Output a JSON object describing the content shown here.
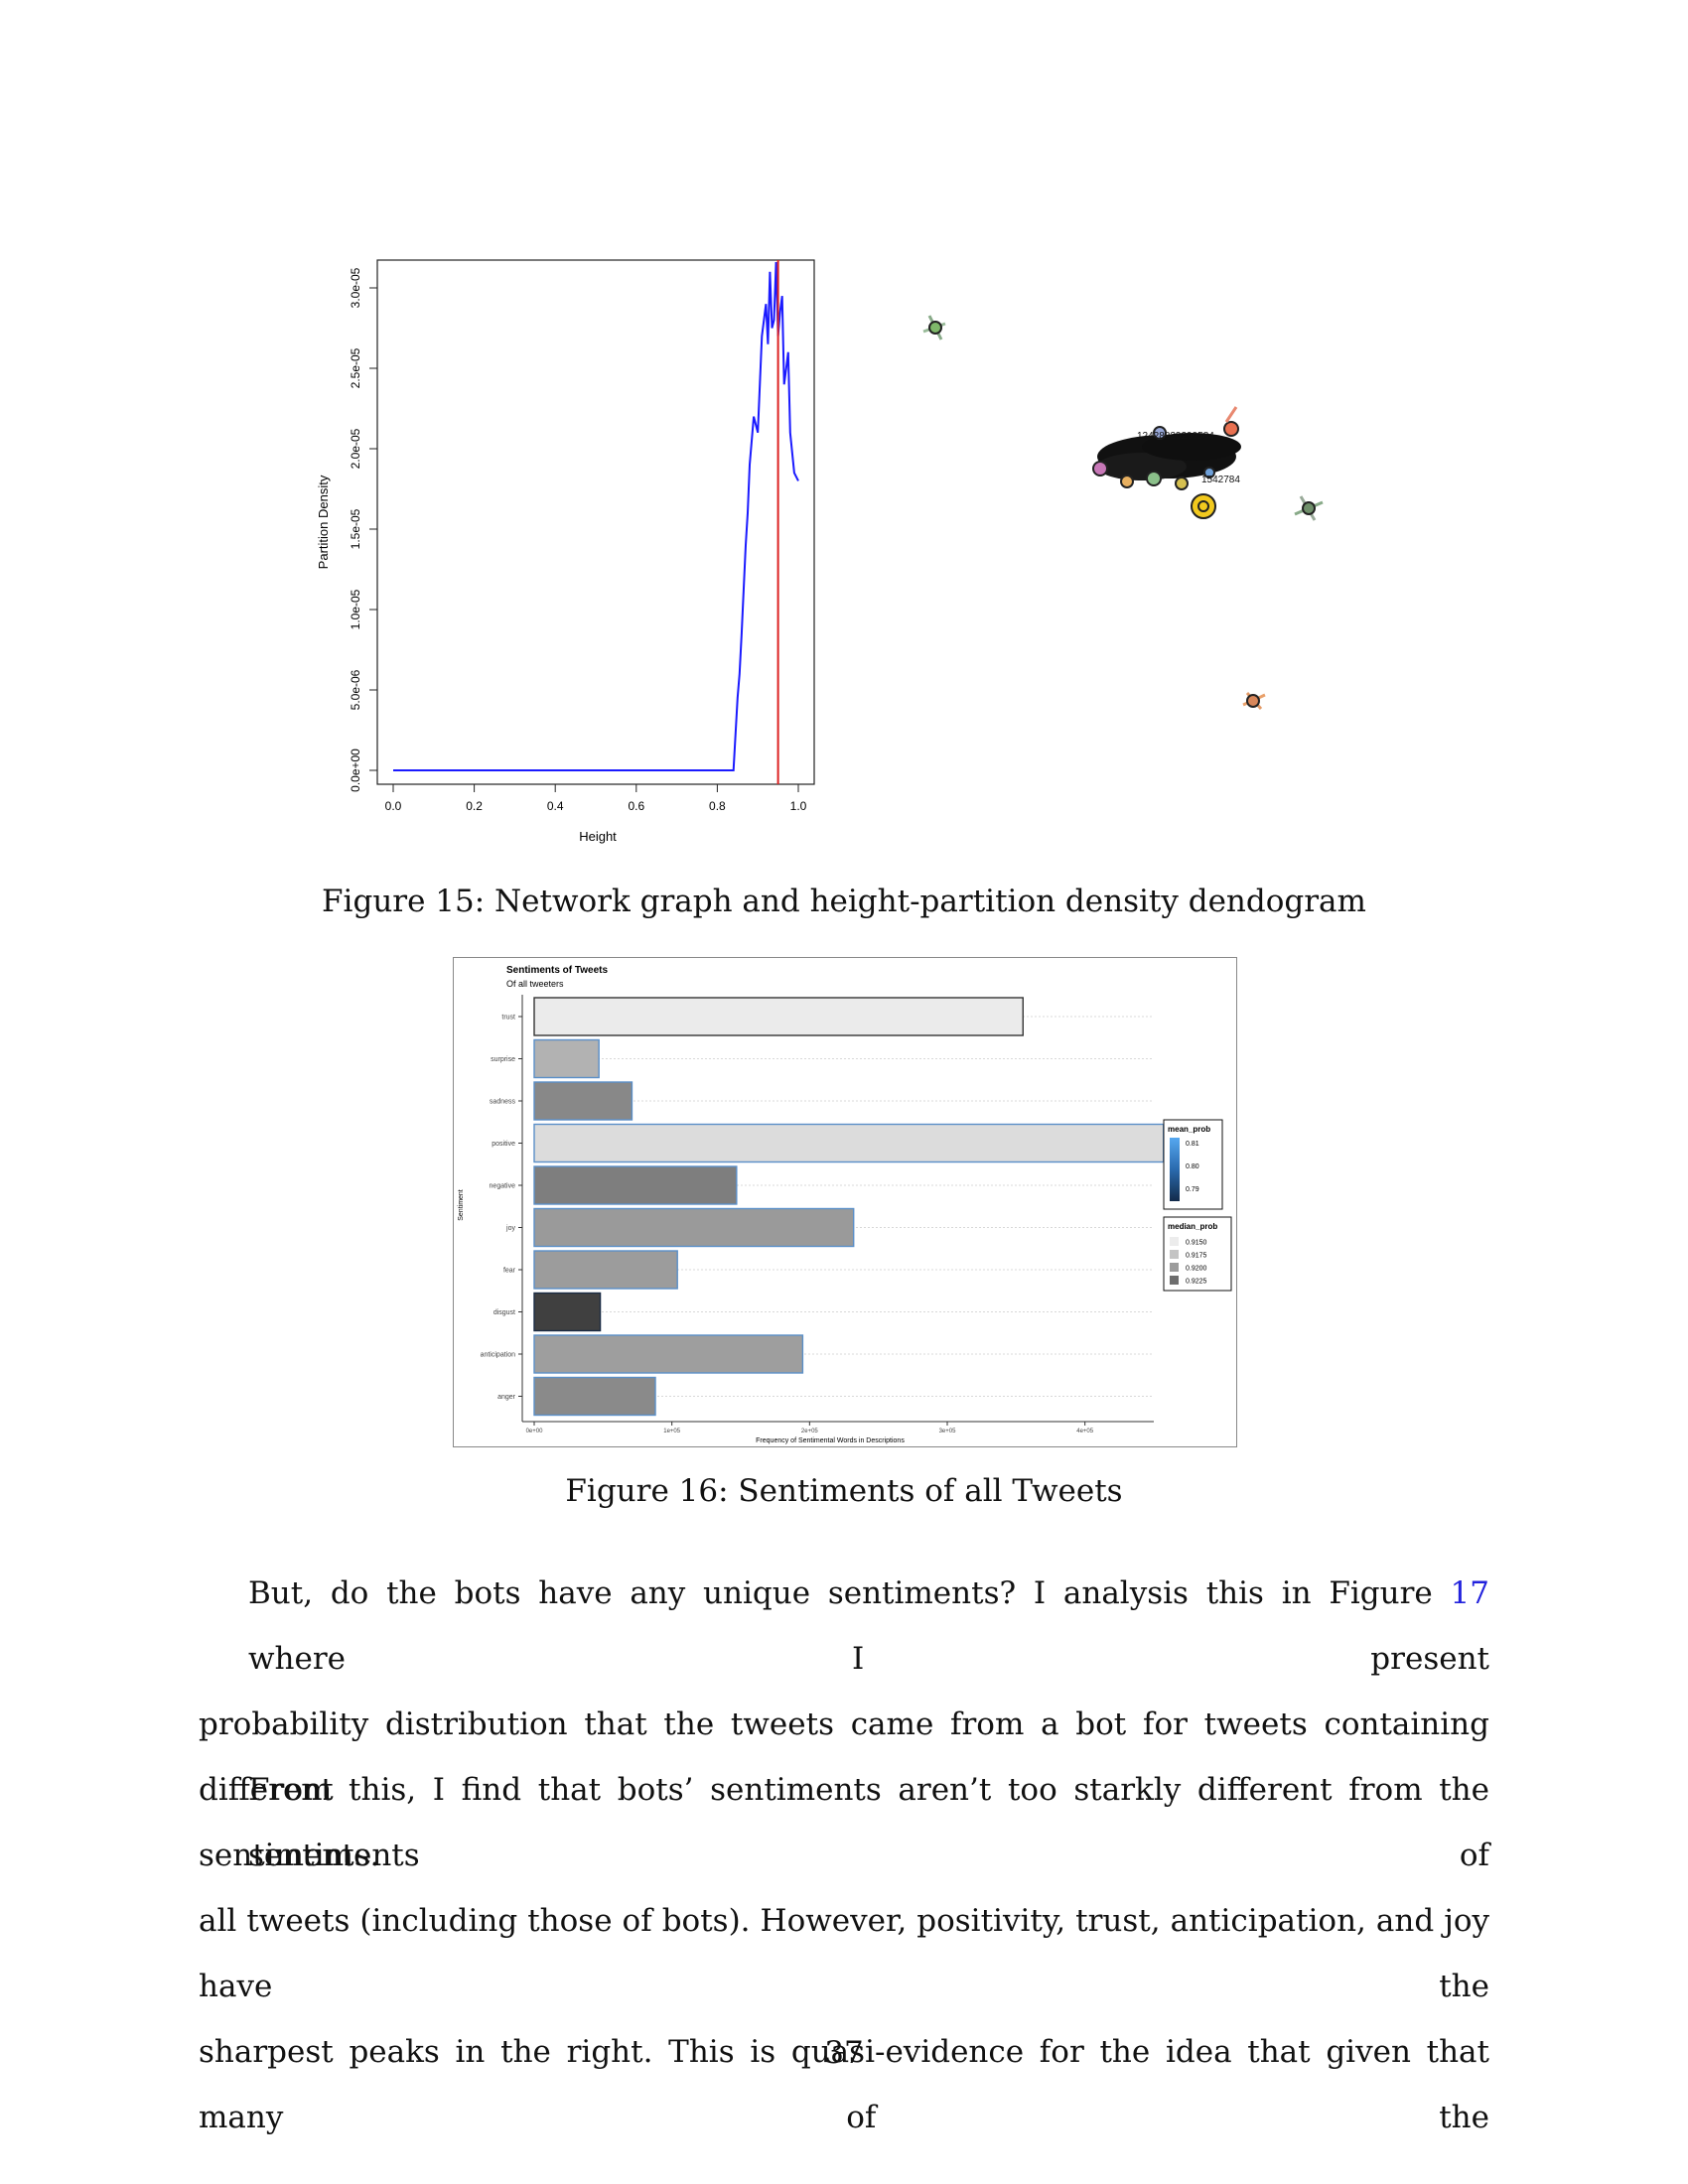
{
  "figure15": {
    "caption": "Figure 15: Network graph and height-partition density dendogram",
    "density_chart": {
      "type": "line",
      "xlabel": "Height",
      "ylabel": "Partition Density",
      "xlim": [
        0,
        1
      ],
      "ylim": [
        0,
        3e-05
      ],
      "x_ticks": [
        "0.0",
        "0.2",
        "0.4",
        "0.6",
        "0.8",
        "1.0"
      ],
      "y_ticks": [
        "0.0e+00",
        "5.0e-06",
        "1.0e-05",
        "1.5e-05",
        "2.0e-05",
        "2.5e-05",
        "3.0e-05"
      ],
      "series_color": "#1a1aff",
      "cut_line_x": 0.95,
      "cut_line_color": "#dd2222",
      "x": [
        0.0,
        0.84,
        0.85,
        0.855,
        0.86,
        0.87,
        0.875,
        0.88,
        0.89,
        0.9,
        0.91,
        0.92,
        0.925,
        0.93,
        0.935,
        0.94,
        0.945,
        0.95,
        0.955,
        0.96,
        0.965,
        0.97,
        0.975,
        0.98,
        0.99,
        1.0
      ],
      "y": [
        0.0,
        0.0,
        4.5e-06,
        6e-06,
        8.5e-06,
        1.4e-05,
        1.6e-05,
        1.9e-05,
        2.2e-05,
        2.1e-05,
        2.7e-05,
        2.9e-05,
        2.65e-05,
        3.1e-05,
        2.75e-05,
        2.8e-05,
        3.25e-05,
        2.7e-05,
        2.85e-05,
        2.95e-05,
        2.4e-05,
        2.5e-05,
        2.6e-05,
        2.1e-05,
        1.85e-05,
        1.8e-05
      ]
    },
    "network_graph": {
      "label_top": "12428829299584",
      "label_bottom": "1542784"
    }
  },
  "figure16": {
    "caption": "Figure 16: Sentiments of all Tweets",
    "chart_data": {
      "type": "bar",
      "orientation": "horizontal",
      "title": "Sentiments of Tweets",
      "subtitle": "Of all tweeters",
      "xlabel": "Frequency of Sentimental Words in Descriptions",
      "ylabel": "Sentiment",
      "xlim": [
        0,
        450000
      ],
      "x_ticks": [
        "0e+00",
        "1e+05",
        "2e+05",
        "3e+05",
        "4e+05"
      ],
      "categories": [
        "trust",
        "surprise",
        "sadness",
        "positive",
        "negative",
        "joy",
        "fear",
        "disgust",
        "anticipation",
        "anger"
      ],
      "values": [
        355000,
        47000,
        71000,
        457000,
        147000,
        232000,
        104000,
        48000,
        195000,
        88000
      ],
      "fill_colors": [
        "#ebebeb",
        "#b2b2b2",
        "#888888",
        "#dcdcdc",
        "#7e7e7e",
        "#9a9a9a",
        "#9c9c9c",
        "#404040",
        "#9e9e9e",
        "#8a8a8a"
      ],
      "outline_colors": [
        "#333333",
        "#5a8fc8",
        "#5a8fc8",
        "#5a8fc8",
        "#5a8fc8",
        "#5a8fc8",
        "#5a8fc8",
        "#1a2b44",
        "#5a8fc8",
        "#5a8fc8"
      ],
      "legend_mean": {
        "title": "mean_prob",
        "labels": [
          "0.81",
          "0.80",
          "0.79"
        ]
      },
      "legend_median": {
        "title": "median_prob",
        "labels": [
          "0.9150",
          "0.9175",
          "0.9200",
          "0.9225"
        ],
        "colors": [
          "#ececec",
          "#c4c4c4",
          "#9c9c9c",
          "#6e6e6e"
        ]
      }
    }
  },
  "body": {
    "para1": {
      "line1_pre": "But, do the bots have any unique sentiments? I analysis this in Figure ",
      "line1_ref": "17",
      "line1_post": " where I present",
      "line2": "probability distribution that the tweets came from a bot for tweets containing different",
      "line3": "sentiments."
    },
    "para2": {
      "line1": "From this, I find that bots’ sentiments aren’t too starkly different from the sentiments of",
      "line2": "all tweets (including those of bots). However, positivity, trust, anticipation, and joy have the",
      "line3": "sharpest peaks in the right. This is quasi-evidence for the idea that given that many of the"
    }
  },
  "page_number": "37"
}
